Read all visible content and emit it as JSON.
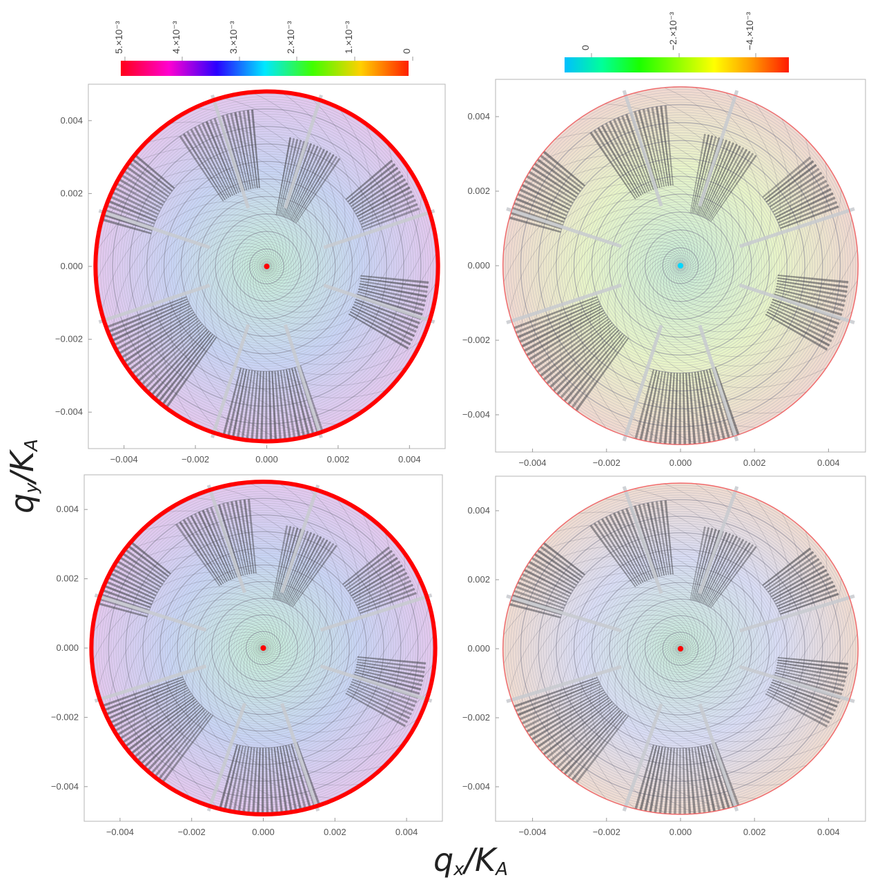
{
  "figure": {
    "xlabel": "qₓ/Kₐ",
    "ylabel": "qᵧ/Kₐ",
    "xlabel_main": "q",
    "xlabel_sub": "x",
    "ylabel_main": "q",
    "ylabel_sub": "y",
    "label_den": "/K",
    "label_den_sub": "A"
  },
  "colorbars": [
    {
      "name": "left",
      "ticks": [
        "5.×10⁻³",
        "4.×10⁻³",
        "3.×10⁻³",
        "2.×10⁻³",
        "1.×10⁻³",
        "0"
      ],
      "colors": [
        "#ff0018",
        "#ff00d0",
        "#2a00ff",
        "#00e8ff",
        "#40ff00",
        "#ffd000",
        "#ff2000"
      ]
    },
    {
      "name": "right",
      "ticks": [
        "0",
        "−2.×10⁻³",
        "−4.×10⁻³"
      ],
      "colors": [
        "#00bfff",
        "#00ff9a",
        "#1aff00",
        "#8cff00",
        "#ffff00",
        "#ff9a00",
        "#ff1a00"
      ]
    }
  ],
  "chart_data": [
    {
      "type": "heatmap",
      "panel": "top-left",
      "xticks": [
        "-0.004",
        "-0.002",
        "0.000",
        "0.002",
        "0.004"
      ],
      "yticks": [
        "0.004",
        "0.002",
        "0.000",
        "-0.002",
        "-0.004"
      ],
      "xlim": [
        -0.005,
        0.005
      ],
      "ylim": [
        -0.005,
        0.005
      ],
      "boundary_color": "#ff0000",
      "boundary": "thick",
      "center_color": "#ff0000",
      "tint_colors": [
        "#e4c8ee",
        "#c8d4f4",
        "#c8f0d8"
      ]
    },
    {
      "type": "heatmap",
      "panel": "top-right",
      "xticks": [
        "-0.004",
        "-0.002",
        "0.000",
        "0.002",
        "0.004"
      ],
      "yticks": [
        "0.004",
        "0.002",
        "0.000",
        "-0.002",
        "-0.004"
      ],
      "xlim": [
        -0.005,
        0.005
      ],
      "ylim": [
        -0.005,
        0.005
      ],
      "boundary_color": "#ff6060",
      "boundary": "thin",
      "center_color": "#00d8ff",
      "tint_colors": [
        "#f0d8d0",
        "#e8f4c8",
        "#c8ecd8"
      ]
    },
    {
      "type": "heatmap",
      "panel": "bottom-left",
      "xticks": [
        "-0.004",
        "-0.002",
        "0.000",
        "0.002",
        "0.004"
      ],
      "yticks": [
        "0.004",
        "0.002",
        "0.000",
        "-0.002",
        "-0.004"
      ],
      "xlim": [
        -0.005,
        0.005
      ],
      "ylim": [
        -0.005,
        0.005
      ],
      "boundary_color": "#ff0000",
      "boundary": "thick",
      "center_color": "#ff0000",
      "tint_colors": [
        "#e4c8ee",
        "#c8d4f4",
        "#c8f0d8"
      ]
    },
    {
      "type": "heatmap",
      "panel": "bottom-right",
      "xticks": [
        "-0.004",
        "-0.002",
        "0.000",
        "0.002",
        "0.004"
      ],
      "yticks": [
        "0.004",
        "0.002",
        "0.000",
        "-0.002",
        "-0.004"
      ],
      "xlim": [
        -0.005,
        0.005
      ],
      "ylim": [
        -0.005,
        0.005
      ],
      "boundary_color": "#ff6060",
      "boundary": "thin",
      "center_color": "#ff0000",
      "tint_colors": [
        "#f0dcd0",
        "#d8dcf4",
        "#c8ecd8"
      ]
    }
  ]
}
